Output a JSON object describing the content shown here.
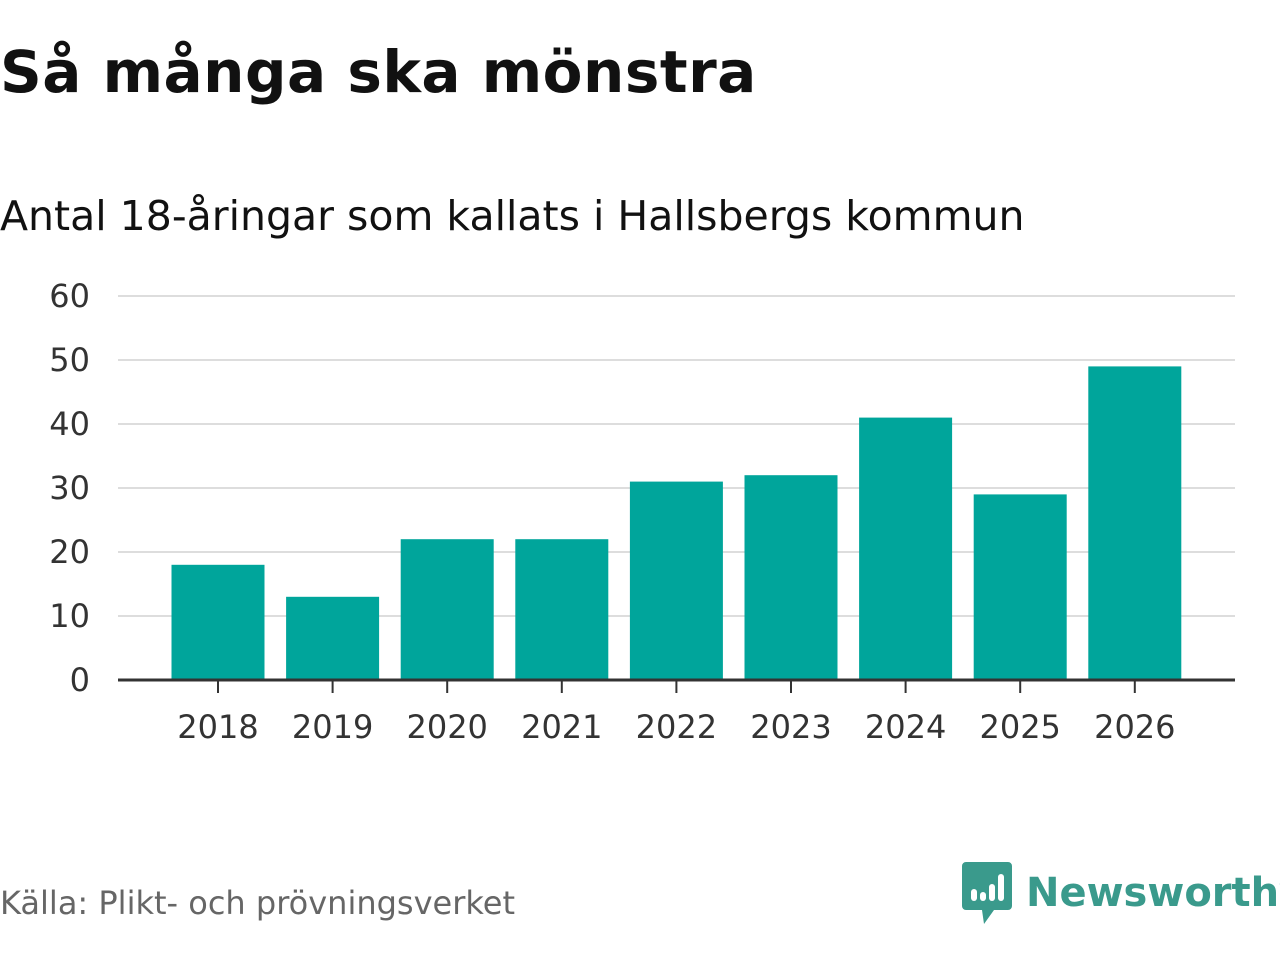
{
  "header": {
    "title": "Så många ska mönstra",
    "subtitle": "Antal 18-åringar som kallats i Hallsbergs kommun"
  },
  "footer": {
    "source": "Källa: Plikt- och prövningsverket",
    "brand": "Newsworthy",
    "brand_icon": "newsworthy-logo-icon"
  },
  "colors": {
    "bar": "#00a59b",
    "grid": "#dddddd",
    "axis": "#333333",
    "brand": "#3a9a8c"
  },
  "chart_data": {
    "type": "bar",
    "title": "Så många ska mönstra",
    "subtitle": "Antal 18-åringar som kallats i Hallsbergs kommun",
    "xlabel": "",
    "ylabel": "",
    "categories": [
      "2018",
      "2019",
      "2020",
      "2021",
      "2022",
      "2023",
      "2024",
      "2025",
      "2026"
    ],
    "values": [
      18,
      13,
      22,
      22,
      31,
      32,
      41,
      29,
      49
    ],
    "ylim": [
      0,
      60
    ],
    "yticks": [
      0,
      10,
      20,
      30,
      40,
      50,
      60
    ],
    "grid": true,
    "legend": "none"
  }
}
